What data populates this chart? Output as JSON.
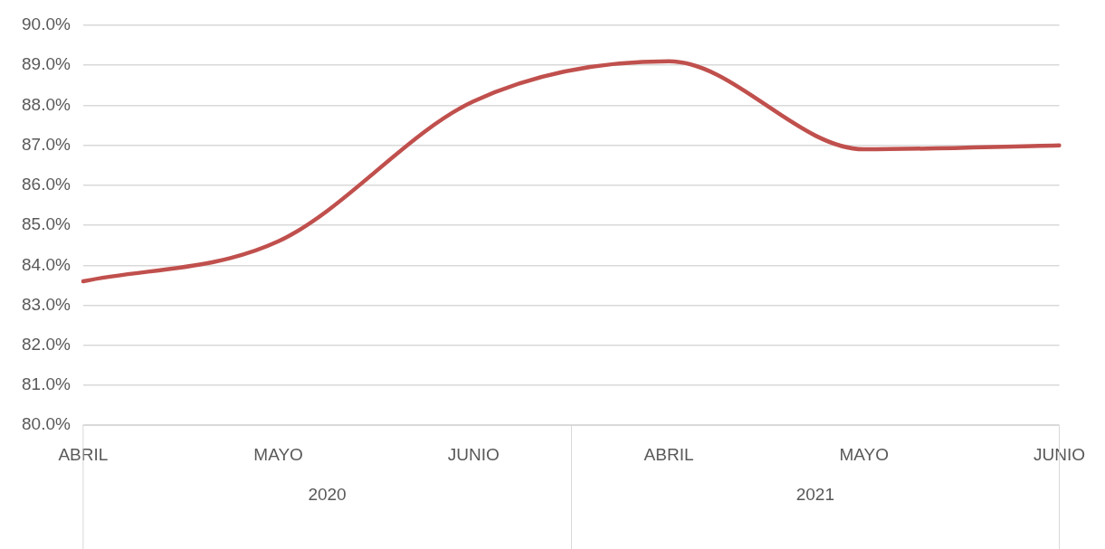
{
  "chart_data": {
    "type": "line",
    "categories": [
      "ABRIL",
      "MAYO",
      "JUNIO",
      "ABRIL",
      "MAYO",
      "JUNIO"
    ],
    "series": [
      {
        "color": "#c0504d",
        "values": [
          83.6,
          84.6,
          88.1,
          89.1,
          86.9,
          87.0
        ]
      }
    ],
    "ylim": [
      80,
      90
    ],
    "yticks": [
      {
        "value": 80,
        "label": "80.0%"
      },
      {
        "value": 81,
        "label": "81.0%"
      },
      {
        "value": 82,
        "label": "82.0%"
      },
      {
        "value": 83,
        "label": "83.0%"
      },
      {
        "value": 84,
        "label": "84.0%"
      },
      {
        "value": 85,
        "label": "85.0%"
      },
      {
        "value": 86,
        "label": "86.0%"
      },
      {
        "value": 87,
        "label": "87.0%"
      },
      {
        "value": 88,
        "label": "88.0%"
      },
      {
        "value": 89,
        "label": "89.0%"
      },
      {
        "value": 90,
        "label": "90.0%"
      }
    ],
    "annotations": [
      "2020",
      "2021"
    ],
    "grid": "y",
    "legend": false,
    "marker": "none",
    "line_style": "solid"
  }
}
